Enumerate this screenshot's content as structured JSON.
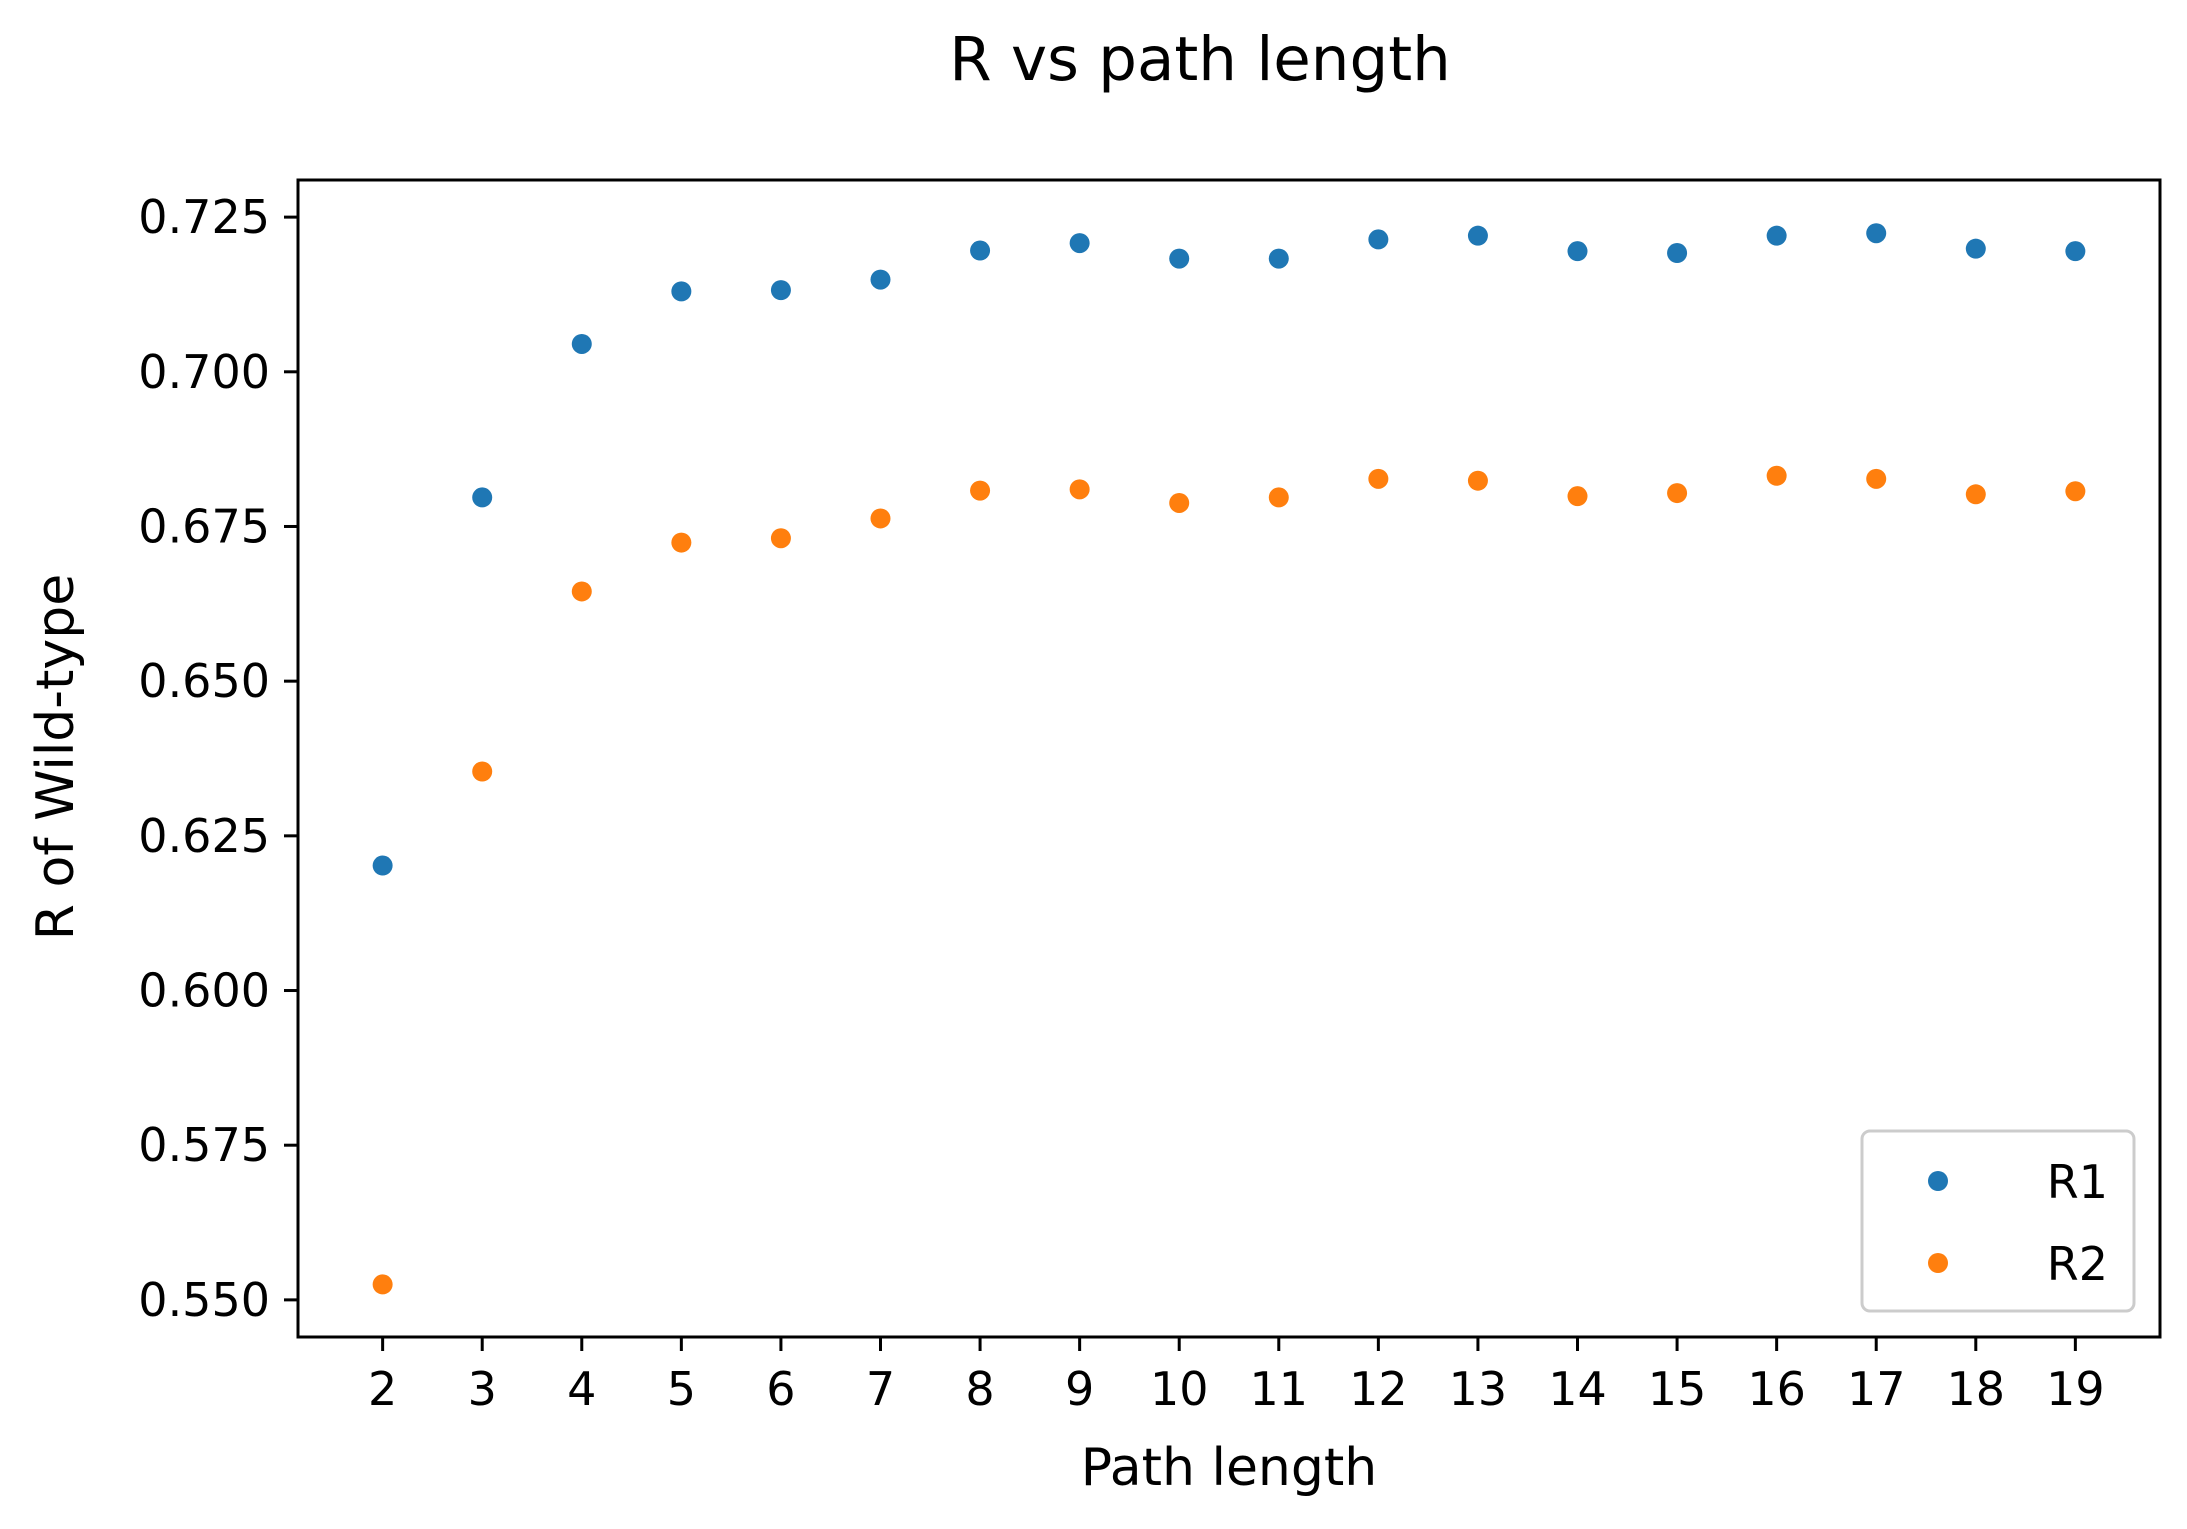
{
  "chart_data": {
    "type": "scatter",
    "title": "R vs path length",
    "xlabel": "Path length",
    "ylabel": "R of Wild-type",
    "x": [
      2,
      3,
      4,
      5,
      6,
      7,
      8,
      9,
      10,
      11,
      12,
      13,
      14,
      15,
      16,
      17,
      18,
      19
    ],
    "xticks": [
      "2",
      "3",
      "4",
      "5",
      "6",
      "7",
      "8",
      "9",
      "10",
      "11",
      "12",
      "13",
      "14",
      "15",
      "16",
      "17",
      "18",
      "19"
    ],
    "xlim": [
      1.15,
      19.85
    ],
    "ylim": [
      0.544,
      0.731
    ],
    "yticks": [
      "0.550",
      "0.575",
      "0.600",
      "0.625",
      "0.650",
      "0.675",
      "0.700",
      "0.725"
    ],
    "grid": false,
    "legend_position": "lower right",
    "series": [
      {
        "name": "R1",
        "color": "#1f77b4",
        "values": [
          0.6202,
          0.6797,
          0.7045,
          0.713,
          0.7132,
          0.7149,
          0.7196,
          0.7208,
          0.7183,
          0.7183,
          0.7214,
          0.722,
          0.7195,
          0.7192,
          0.722,
          0.7224,
          0.7199,
          0.7195
        ]
      },
      {
        "name": "R2",
        "color": "#ff7f0e",
        "values": [
          0.5525,
          0.6354,
          0.6645,
          0.6724,
          0.6731,
          0.6763,
          0.6808,
          0.681,
          0.6788,
          0.6797,
          0.6827,
          0.6824,
          0.6799,
          0.6804,
          0.6832,
          0.6827,
          0.6802,
          0.6807
        ]
      }
    ]
  }
}
